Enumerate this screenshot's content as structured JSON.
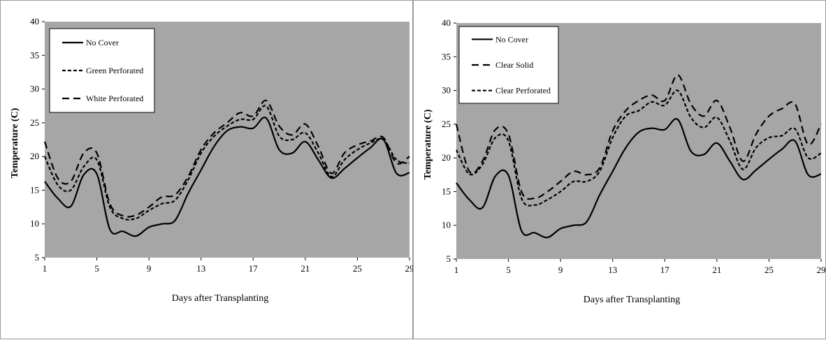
{
  "chart_data": [
    {
      "type": "line",
      "title": "",
      "xlabel": "Days after Transplanting",
      "ylabel": "Temperature (C)",
      "xlim": [
        1,
        29
      ],
      "ylim": [
        5,
        40
      ],
      "x_ticks": [
        1,
        5,
        9,
        13,
        17,
        21,
        25,
        29
      ],
      "y_ticks": [
        5,
        10,
        15,
        20,
        25,
        30,
        35,
        40
      ],
      "grid": false,
      "legend_position": "top-left",
      "plot_background": "#a6a6a6",
      "x": [
        1,
        2,
        3,
        4,
        5,
        6,
        7,
        8,
        9,
        10,
        11,
        12,
        13,
        14,
        15,
        16,
        17,
        18,
        19,
        20,
        21,
        22,
        23,
        24,
        25,
        26,
        27,
        28,
        29
      ],
      "series": [
        {
          "name": "No Cover",
          "dash": "solid",
          "values": [
            16.3,
            13.8,
            12.6,
            17.3,
            17.4,
            9.2,
            8.9,
            8.2,
            9.5,
            10.0,
            10.5,
            14.5,
            18.0,
            21.5,
            23.8,
            24.4,
            24.2,
            25.7,
            21.0,
            20.5,
            22.2,
            19.5,
            16.8,
            18.2,
            19.8,
            21.3,
            22.5,
            17.5,
            17.6
          ]
        },
        {
          "name": "Green Perforated",
          "dash": "dotted",
          "values": [
            20.0,
            15.8,
            15.0,
            18.5,
            19.5,
            12.5,
            10.8,
            10.8,
            12.0,
            13.0,
            13.5,
            16.5,
            20.5,
            23.0,
            24.5,
            25.5,
            25.5,
            27.5,
            23.0,
            22.5,
            23.5,
            20.5,
            17.0,
            19.5,
            21.0,
            22.0,
            22.5,
            19.5,
            19.0
          ]
        },
        {
          "name": "White Perforated",
          "dash": "dashed",
          "values": [
            22.2,
            16.8,
            16.3,
            20.5,
            20.5,
            13.0,
            11.2,
            11.3,
            12.5,
            14.0,
            14.3,
            17.0,
            21.0,
            23.5,
            25.0,
            26.5,
            26.0,
            28.3,
            24.5,
            23.2,
            24.8,
            21.5,
            17.5,
            20.5,
            21.7,
            22.3,
            22.8,
            19.0,
            20.0
          ]
        }
      ]
    },
    {
      "type": "line",
      "title": "",
      "xlabel": "Days after Transplanting",
      "ylabel": "Temperature (C)",
      "xlim": [
        1,
        29
      ],
      "ylim": [
        5,
        40
      ],
      "x_ticks": [
        1,
        5,
        9,
        13,
        17,
        21,
        25,
        29
      ],
      "y_ticks": [
        5,
        10,
        15,
        20,
        25,
        30,
        35,
        40
      ],
      "grid": false,
      "legend_position": "top-left",
      "plot_background": "#a6a6a6",
      "x": [
        1,
        2,
        3,
        4,
        5,
        6,
        7,
        8,
        9,
        10,
        11,
        12,
        13,
        14,
        15,
        16,
        17,
        18,
        19,
        20,
        21,
        22,
        23,
        24,
        25,
        26,
        27,
        28,
        29
      ],
      "series": [
        {
          "name": "No Cover",
          "dash": "solid",
          "values": [
            16.3,
            13.8,
            12.6,
            17.3,
            17.4,
            9.2,
            8.9,
            8.2,
            9.5,
            10.0,
            10.5,
            14.5,
            18.0,
            21.5,
            23.8,
            24.4,
            24.2,
            25.7,
            21.0,
            20.5,
            22.2,
            19.5,
            16.8,
            18.2,
            19.8,
            21.3,
            22.5,
            17.5,
            17.6
          ]
        },
        {
          "name": "Clear Solid",
          "dash": "dashed",
          "values": [
            25.0,
            18.0,
            19.5,
            24.2,
            23.5,
            15.0,
            14.0,
            15.0,
            16.5,
            18.0,
            17.5,
            18.5,
            24.0,
            27.0,
            28.5,
            29.3,
            28.5,
            32.3,
            28.0,
            26.2,
            28.5,
            24.5,
            19.5,
            23.5,
            26.2,
            27.3,
            28.0,
            22.0,
            25.0
          ]
        },
        {
          "name": "Clear Perforated",
          "dash": "dotted",
          "values": [
            21.2,
            17.6,
            19.0,
            23.0,
            22.5,
            14.0,
            13.0,
            13.8,
            15.0,
            16.5,
            16.5,
            18.0,
            23.0,
            26.2,
            27.0,
            28.3,
            27.8,
            30.0,
            26.0,
            24.5,
            26.0,
            22.5,
            18.3,
            21.5,
            23.0,
            23.3,
            24.3,
            20.0,
            20.7
          ]
        }
      ]
    }
  ]
}
